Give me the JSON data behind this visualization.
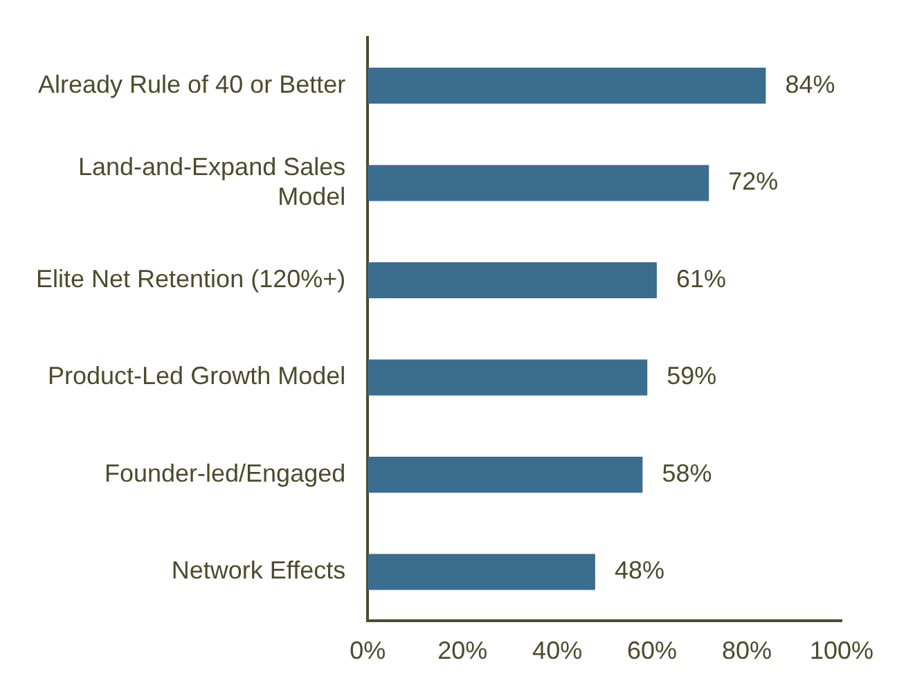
{
  "chart_data": {
    "type": "bar",
    "orientation": "horizontal",
    "categories": [
      "Already Rule of 40 or Better",
      "Land-and-Expand Sales Model",
      "Elite Net Retention (120%+)",
      "Product-Led Growth Model",
      "Founder-led/Engaged",
      "Network Effects"
    ],
    "values": [
      84,
      72,
      61,
      59,
      58,
      48
    ],
    "value_labels": [
      "84%",
      "72%",
      "61%",
      "59%",
      "58%",
      "48%"
    ],
    "color": "#3b6d8f",
    "xlim": [
      0,
      100
    ],
    "xticks": [
      {
        "value": 0,
        "label": "0%"
      },
      {
        "value": 20,
        "label": "20%"
      },
      {
        "value": 40,
        "label": "40%"
      },
      {
        "value": 60,
        "label": "60%"
      },
      {
        "value": 80,
        "label": "80%"
      },
      {
        "value": 100,
        "label": "100%"
      }
    ]
  }
}
